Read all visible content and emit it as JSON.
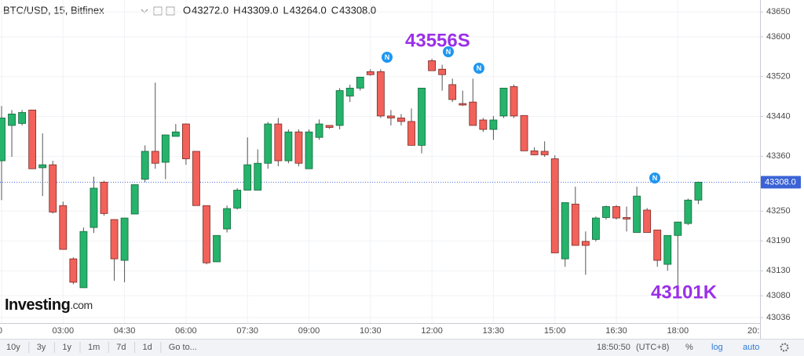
{
  "chart_data": {
    "type": "candlestick",
    "title": "BTC/USD, 15, Bitfinex",
    "ohlc_header": [
      {
        "label": "O",
        "value": "43272.0"
      },
      {
        "label": "H",
        "value": "43309.0"
      },
      {
        "label": "L",
        "value": "43264.0"
      },
      {
        "label": "C",
        "value": "43308.0"
      }
    ],
    "categories": [
      "0",
      null,
      null,
      null,
      null,
      null,
      "03:00",
      null,
      null,
      null,
      null,
      null,
      "04:30",
      null,
      null,
      null,
      null,
      null,
      "06:00",
      null,
      null,
      null,
      null,
      null,
      "07:30",
      null,
      null,
      null,
      null,
      null,
      "09:00",
      null,
      null,
      null,
      null,
      null,
      "10:30",
      null,
      null,
      null,
      null,
      null,
      "12:00",
      null,
      null,
      null,
      null,
      null,
      "13:30",
      null,
      null,
      null,
      null,
      null,
      "15:00",
      null,
      null,
      null,
      null,
      null,
      "16:30",
      null,
      null,
      null,
      null,
      null,
      "18:00",
      null,
      null
    ],
    "x_edge_label": "20:",
    "open": [
      43351,
      43422,
      43426,
      43453,
      43337,
      43343,
      43261,
      43154,
      43096,
      43217,
      43308,
      43233,
      43151,
      43244,
      43314,
      43370,
      43348,
      43400,
      43425,
      43370,
      43261,
      43148,
      43214,
      43256,
      43292,
      43292,
      43346,
      43425,
      43351,
      43409,
      43335,
      43398,
      43422,
      43422,
      43481,
      43497,
      43530,
      43530,
      43441,
      43437,
      43430,
      43382,
      43552,
      43535,
      43504,
      43466,
      43469,
      43433,
      43414,
      43441,
      43500,
      43442,
      43371,
      43370,
      43355,
      43154,
      43264,
      43189,
      43193,
      43237,
      43259,
      43237,
      43207,
      43252,
      43212,
      43143,
      43201,
      43225,
      43272
    ],
    "high": [
      43461,
      43453,
      43453,
      43453,
      43406,
      43351,
      43269,
      43157,
      43217,
      43319,
      43311,
      43233,
      43236,
      43303,
      43382,
      43508,
      43403,
      43425,
      43426,
      43370,
      43261,
      43201,
      43261,
      43296,
      43398,
      43374,
      43429,
      43437,
      43414,
      43414,
      43414,
      43434,
      43422,
      43497,
      43504,
      43519,
      43535,
      43535,
      43453,
      43445,
      43456,
      43497,
      43556,
      43544,
      43516,
      43492,
      43516,
      43437,
      43441,
      43497,
      43504,
      43442,
      43378,
      43390,
      43362,
      43267,
      43299,
      43209,
      43239,
      43261,
      43262,
      43259,
      43299,
      43256,
      43212,
      43201,
      43228,
      43275,
      43309
    ],
    "low": [
      43272,
      43359,
      43422,
      43335,
      43280,
      43245,
      43173,
      43103,
      43096,
      43206,
      43241,
      43110,
      43107,
      43244,
      43308,
      43335,
      43314,
      43400,
      43343,
      43261,
      43143,
      43148,
      43207,
      43253,
      43292,
      43292,
      43335,
      43340,
      43346,
      43340,
      43335,
      43393,
      43415,
      43414,
      43469,
      43492,
      43522,
      43437,
      43422,
      43422,
      43382,
      43366,
      43532,
      43492,
      43469,
      43461,
      43422,
      43409,
      43393,
      43437,
      43437,
      43371,
      43362,
      43359,
      43166,
      43138,
      43181,
      43122,
      43189,
      43233,
      43233,
      43209,
      43207,
      43207,
      43138,
      43130,
      43101,
      43222,
      43264
    ],
    "close": [
      43437,
      43445,
      43448,
      43335,
      43343,
      43248,
      43173,
      43107,
      43209,
      43296,
      43245,
      43154,
      43236,
      43303,
      43370,
      43346,
      43403,
      43409,
      43355,
      43261,
      43146,
      43201,
      43255,
      43292,
      43343,
      43346,
      43425,
      43351,
      43409,
      43346,
      43409,
      43425,
      43418,
      43492,
      43497,
      43519,
      43524,
      43441,
      43437,
      43430,
      43382,
      43497,
      43532,
      43524,
      43474,
      43463,
      43422,
      43414,
      43433,
      43497,
      43441,
      43371,
      43363,
      43363,
      43166,
      43267,
      43181,
      43181,
      43236,
      43259,
      43236,
      43234,
      43280,
      43207,
      43151,
      43201,
      43228,
      43272,
      43308
    ],
    "up_color": "#26b36b",
    "down_color": "#f2625a",
    "ylim": [
      43025,
      43674
    ],
    "yticks": [
      43036,
      43080,
      43130,
      43190,
      43250,
      43360,
      43440,
      43520,
      43600,
      43650
    ],
    "grid": true,
    "last_price": {
      "value": 43308,
      "label": "43308.0"
    },
    "annotations": [
      "43556S",
      "43101K"
    ],
    "news_markers": [
      "N",
      "N",
      "N",
      "N"
    ],
    "logo": {
      "brand": "Investing",
      "suffix": ".com"
    }
  },
  "toolbar": {
    "ranges": [
      "10y",
      "3y",
      "1y",
      "1m",
      "7d",
      "1d"
    ],
    "goto": "Go to...",
    "clock": "18:50:50",
    "timezone": "(UTC+8)",
    "options": [
      "%",
      "log",
      "auto"
    ]
  }
}
